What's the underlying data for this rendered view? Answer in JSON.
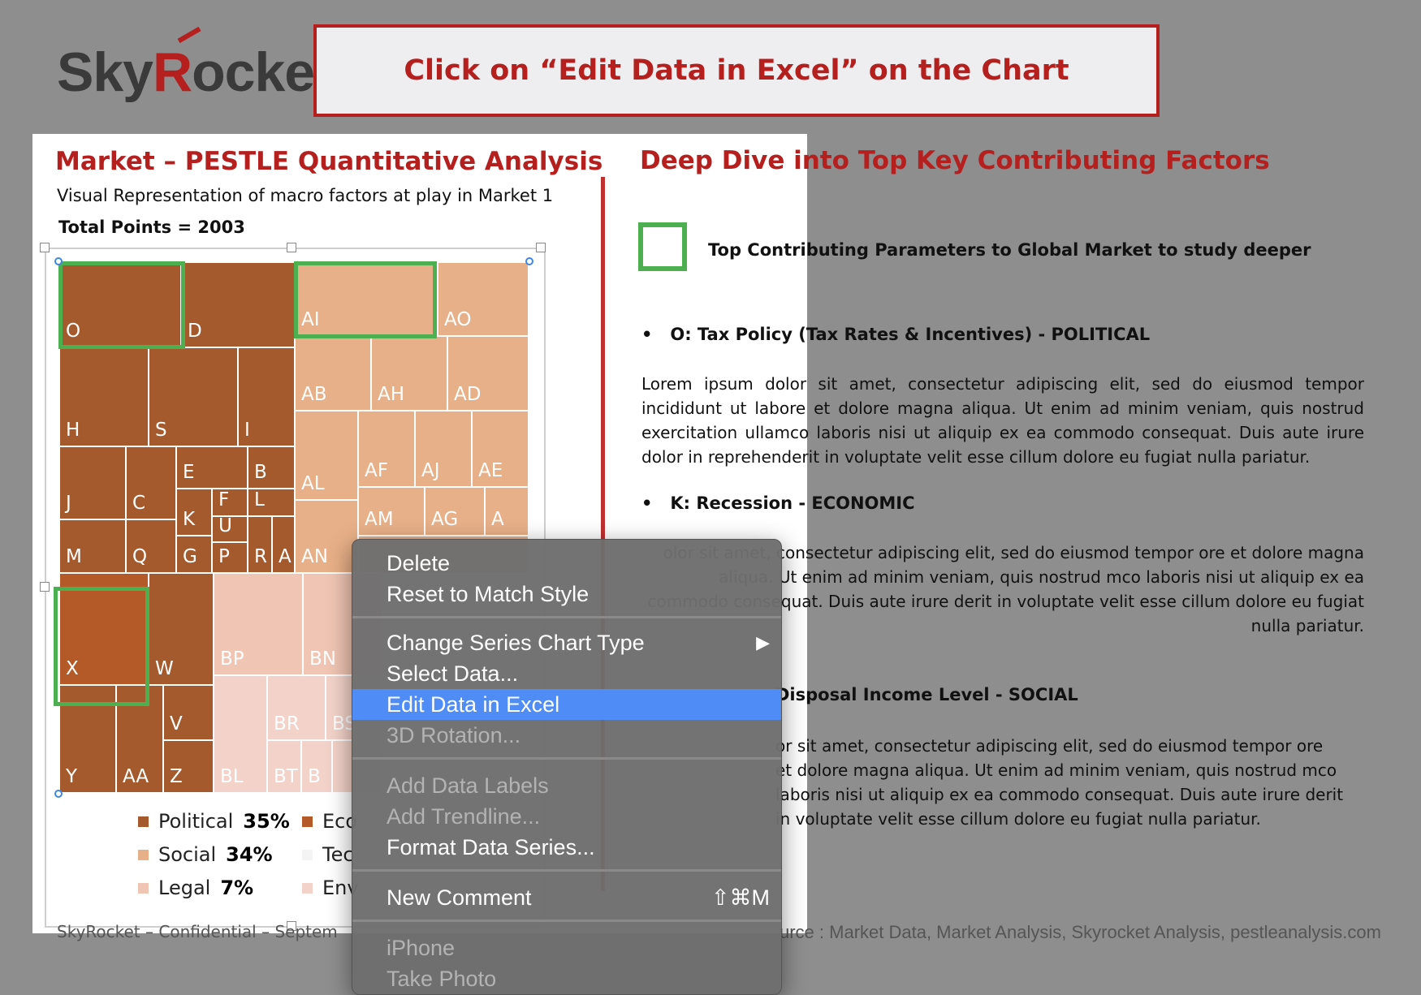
{
  "logo": {
    "prefix": "Sky",
    "r": "R",
    "suffix": "ocket"
  },
  "banner": {
    "text": "Click on “Edit Data in Excel” on the Chart"
  },
  "slide": {
    "title": "Market – PESTLE Quantitative Analysis",
    "subtitle": "Visual Representation of macro factors at play in Market 1",
    "total": "Total Points = 2003"
  },
  "treemap": {
    "colors": {
      "political": "#a55a2d",
      "economic": "#b35a28",
      "social": "#e8b088",
      "legal": "#f0c5b4",
      "environmental": "#f3d3c9",
      "highlight": "#4caf50"
    },
    "cells": [
      "O",
      "D",
      "AI",
      "AO",
      "H",
      "S",
      "I",
      "AB",
      "AH",
      "AD",
      "J",
      "C",
      "E",
      "B",
      "F",
      "L",
      "K",
      "U",
      "P",
      "R",
      "A",
      "M",
      "Q",
      "G",
      "AL",
      "AF",
      "AJ",
      "AE",
      "AM",
      "AG",
      "A",
      "AN",
      "X",
      "W",
      "BP",
      "BN",
      "BR",
      "BS",
      "V",
      "Y",
      "AA",
      "Z",
      "BL",
      "BT",
      "B"
    ]
  },
  "legend": [
    {
      "label": "Political",
      "pct": "35%"
    },
    {
      "label": "Eco",
      "pct": ""
    },
    {
      "label": "Social",
      "pct": "34%"
    },
    {
      "label": "Tec",
      "pct": ""
    },
    {
      "label": "Legal",
      "pct": "7%"
    },
    {
      "label": "Env",
      "pct": ""
    }
  ],
  "right": {
    "title": "Deep Dive into Top Key Contributing Factors",
    "key_text": "Top Contributing Parameters to Global Market to study deeper",
    "bullet1": "O: Tax Policy (Tax Rates & Incentives) - POLITICAL",
    "bullet2": "K: Recession - ECONOMIC",
    "bullet3": "Disposal Income Level - SOCIAL",
    "para1": "Lorem ipsum dolor sit amet, consectetur adipiscing elit, sed do eiusmod tempor incididunt ut labore et dolore magna aliqua. Ut enim ad minim veniam, quis nostrud exercitation ullamco laboris nisi ut aliquip ex ea commodo consequat. Duis aute irure dolor in reprehenderit in voluptate velit esse cillum dolore eu fugiat nulla pariatur.",
    "para2": "olor sit amet, consectetur adipiscing elit, sed do eiusmod tempor ore et dolore magna aliqua. Ut enim ad minim veniam, quis nostrud mco laboris nisi ut aliquip ex ea commodo consequat. Duis aute irure derit in voluptate velit esse cillum dolore eu fugiat nulla pariatur.",
    "para3": "or sit amet, consectetur adipiscing elit, sed do eiusmod tempor ore et dolore magna aliqua. Ut enim ad minim veniam, quis nostrud mco laboris nisi ut aliquip ex ea commodo consequat. Duis aute irure derit in voluptate velit esse cillum dolore eu fugiat nulla pariatur."
  },
  "footer": {
    "left": "SkyRocket – Confidential – Septem",
    "right": "urce : Market Data, Market Analysis, Skyrocket Analysis, pestleanalysis.com"
  },
  "context_menu": {
    "delete": "Delete",
    "reset": "Reset to Match Style",
    "change_type": "Change Series Chart Type",
    "submenu_arrow": "▶",
    "select_data": "Select Data...",
    "edit_excel": "Edit Data in Excel",
    "rotation": "3D Rotation...",
    "add_labels": "Add Data Labels",
    "add_trendline": "Add Trendline...",
    "format_series": "Format Data Series...",
    "new_comment": "New Comment",
    "new_comment_shortcut": "⇧⌘M",
    "iphone": "iPhone",
    "take_photo": "Take Photo"
  }
}
